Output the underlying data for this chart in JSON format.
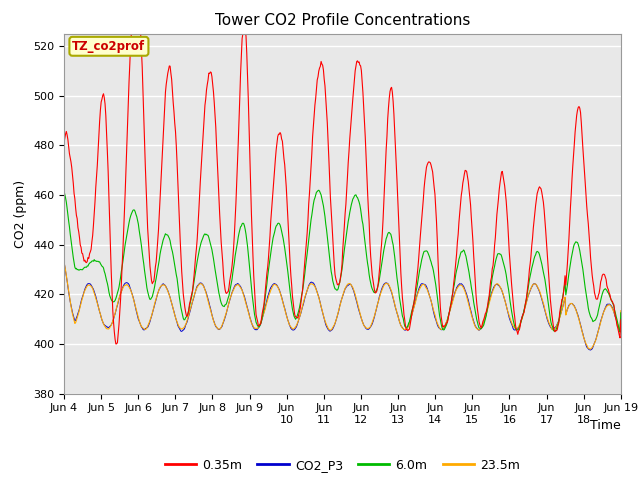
{
  "title": "Tower CO2 Profile Concentrations",
  "xlabel": "Time",
  "ylabel": "CO2 (ppm)",
  "ylim": [
    380,
    525
  ],
  "yticks": [
    380,
    400,
    420,
    440,
    460,
    480,
    500,
    520
  ],
  "xtick_labels": [
    "Jun 4",
    "Jun 5",
    "Jun 6",
    "Jun 7",
    "Jun 8",
    "Jun 9",
    "Jun 10",
    "Jun 11",
    "Jun 12",
    "Jun 13",
    "Jun 14",
    "Jun 15",
    "Jun 16",
    "Jun 17",
    "Jun 18",
    "Jun 19"
  ],
  "legend_labels": [
    "0.35m",
    "CO2_P3",
    "6.0m",
    "23.5m"
  ],
  "legend_colors": [
    "#ff0000",
    "#0000cd",
    "#00bb00",
    "#ffaa00"
  ],
  "annotation_text": "TZ_co2prof",
  "annotation_bbox_facecolor": "#ffffcc",
  "annotation_bbox_edgecolor": "#aaaa00",
  "background_color": "#e8e8e8",
  "title_fontsize": 11,
  "label_fontsize": 9,
  "tick_fontsize": 8
}
